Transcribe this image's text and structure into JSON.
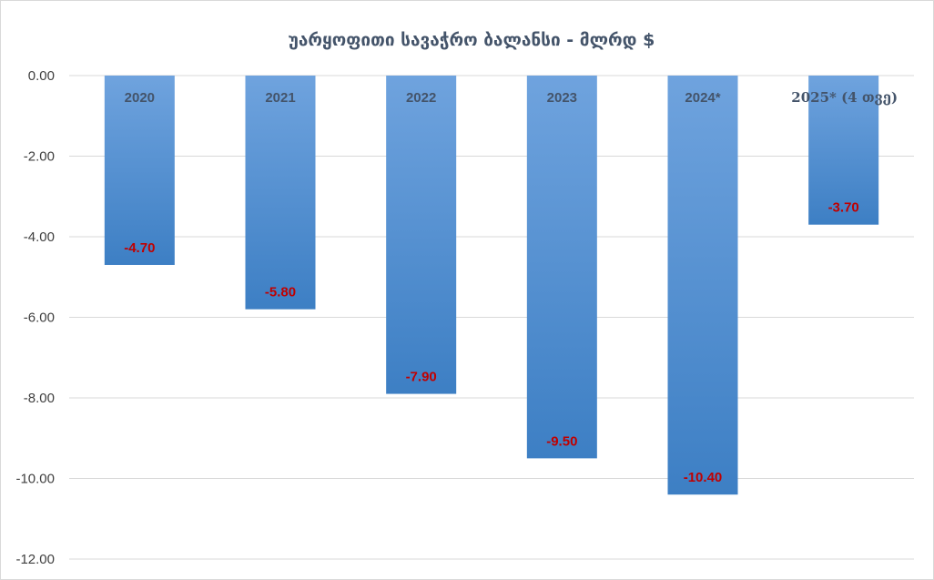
{
  "chart_data": {
    "type": "bar",
    "title": "უარყოფითი სავაჭრო ბალანსი - მლრდ $",
    "categories": [
      "2020",
      "2021",
      "2022",
      "2023",
      "2024*",
      "2025* (4 თვე)"
    ],
    "values": [
      -4.7,
      -5.8,
      -7.9,
      -9.5,
      -10.4,
      -3.7
    ],
    "value_labels": [
      "-4.70",
      "-5.80",
      "-7.90",
      "-9.50",
      "-10.40",
      "-3.70"
    ],
    "ylim": [
      -12,
      0
    ],
    "yticks": [
      0,
      -2,
      -4,
      -6,
      -8,
      -10,
      -12
    ],
    "ytick_labels": [
      "0.00",
      "-2.00",
      "-4.00",
      "-6.00",
      "-8.00",
      "-10.00",
      "-12.00"
    ],
    "grid": true,
    "legend": "none",
    "xlabel": "",
    "ylabel": "",
    "colors": {
      "bar_top": "#6fa3de",
      "bar_bottom": "#3d7fc4",
      "label": "#c00000",
      "grid": "#d9d9d9"
    }
  }
}
